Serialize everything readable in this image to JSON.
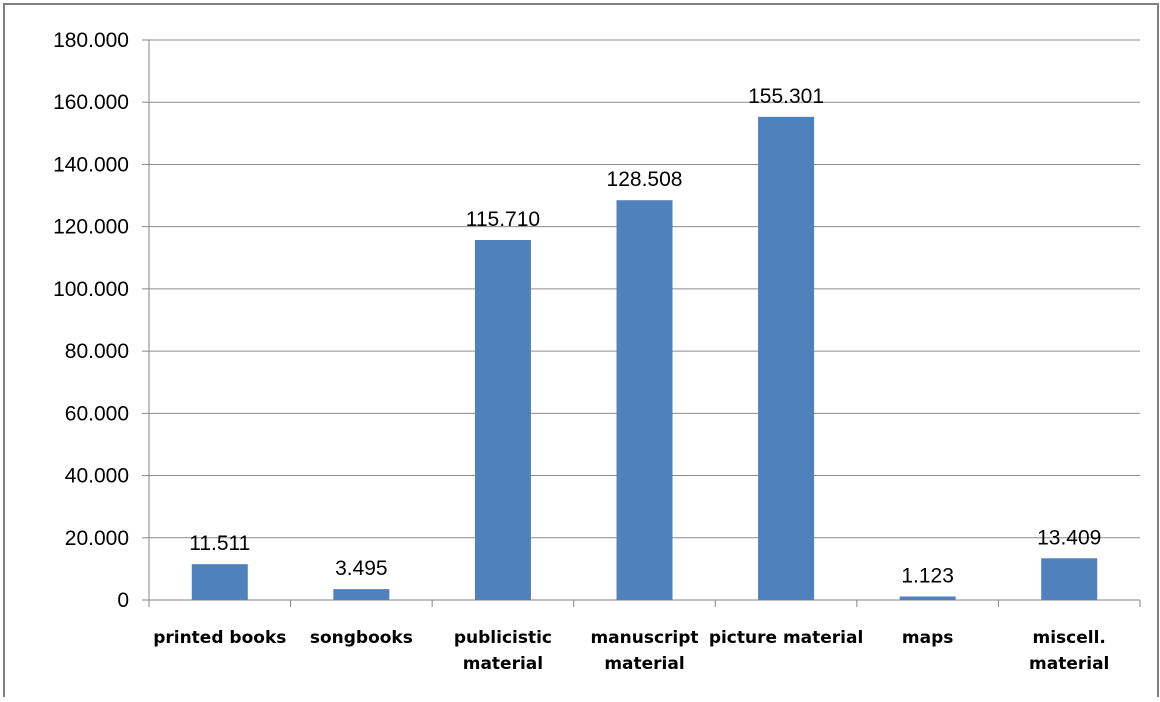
{
  "chart_data": {
    "type": "bar",
    "categories": [
      "printed books",
      "songbooks",
      "publicistic material",
      "manuscript material",
      "picture material",
      "maps",
      "miscell. material"
    ],
    "category_lines": [
      [
        "printed books"
      ],
      [
        "songbooks"
      ],
      [
        "publicistic",
        "material"
      ],
      [
        "manuscript",
        "material"
      ],
      [
        "picture material"
      ],
      [
        "maps"
      ],
      [
        "miscell.",
        "material"
      ]
    ],
    "values": [
      11511,
      3495,
      115710,
      128508,
      155301,
      1123,
      13409
    ],
    "value_labels": [
      "11.511",
      "3.495",
      "115.710",
      "128.508",
      "155.301",
      "1.123",
      "13.409"
    ],
    "y_ticks": [
      0,
      20000,
      40000,
      60000,
      80000,
      100000,
      120000,
      140000,
      160000,
      180000
    ],
    "y_tick_labels": [
      "0",
      "20.000",
      "40.000",
      "60.000",
      "80.000",
      "100.000",
      "120.000",
      "140.000",
      "160.000",
      "180.000"
    ],
    "ylim": [
      0,
      180000
    ],
    "title": "",
    "xlabel": "",
    "ylabel": "",
    "grid": true,
    "legend": "none",
    "bar_color": "#4f81bd",
    "grid_color": "#8c8c8c",
    "axis_color": "#868686",
    "border_color": "#808080"
  }
}
